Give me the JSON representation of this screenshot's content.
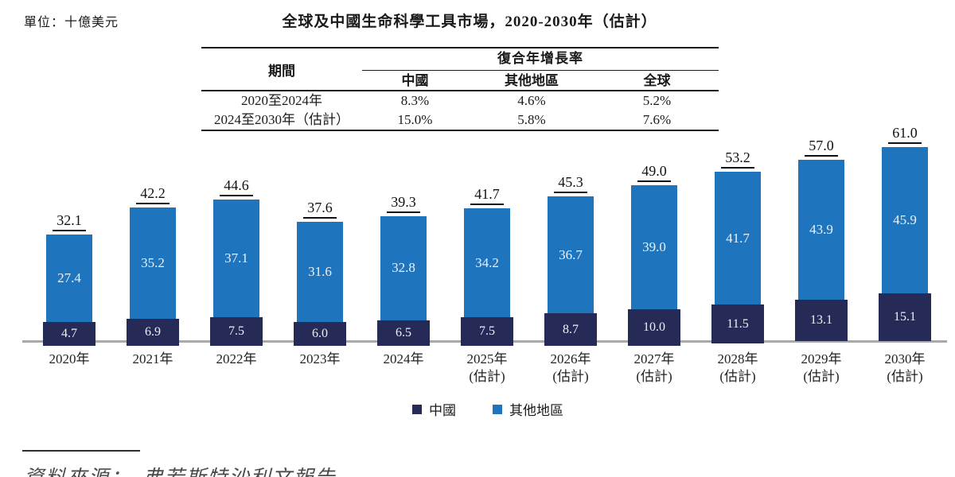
{
  "unit_label": "單位：十億美元",
  "title": "全球及中國生命科學工具市場，2020-2030年（估計）",
  "cagr_table": {
    "period_header": "期間",
    "group_header": "復合年增長率",
    "col_headers": [
      "中國",
      "其他地區",
      "全球"
    ],
    "rows": [
      {
        "period": "2020至2024年",
        "values": [
          "8.3%",
          "4.6%",
          "5.2%"
        ]
      },
      {
        "period": "2024至2030年（估計）",
        "values": [
          "15.0%",
          "5.8%",
          "7.6%"
        ]
      }
    ]
  },
  "chart_data": {
    "type": "bar",
    "stacked": true,
    "title": "全球及中國生命科學工具市場，2020-2030年（估計）",
    "unit": "十億美元",
    "grid": false,
    "legend_position": "bottom",
    "ylim": [
      0,
      65
    ],
    "categories": [
      {
        "label": "2020年",
        "sublabel": ""
      },
      {
        "label": "2021年",
        "sublabel": ""
      },
      {
        "label": "2022年",
        "sublabel": ""
      },
      {
        "label": "2023年",
        "sublabel": ""
      },
      {
        "label": "2024年",
        "sublabel": ""
      },
      {
        "label": "2025年",
        "sublabel": "(估計)"
      },
      {
        "label": "2026年",
        "sublabel": "(估計)"
      },
      {
        "label": "2027年",
        "sublabel": "(估計)"
      },
      {
        "label": "2028年",
        "sublabel": "(估計)"
      },
      {
        "label": "2029年",
        "sublabel": "(估計)"
      },
      {
        "label": "2030年",
        "sublabel": "(估計)"
      }
    ],
    "series": [
      {
        "name": "中國",
        "color": "#252A56",
        "values": [
          4.7,
          6.9,
          7.5,
          6.0,
          6.5,
          7.5,
          8.7,
          10.0,
          11.5,
          13.1,
          15.1
        ]
      },
      {
        "name": "其他地區",
        "color": "#1E75BD",
        "values": [
          27.4,
          35.2,
          37.1,
          31.6,
          32.8,
          34.2,
          36.7,
          39.0,
          41.7,
          43.9,
          45.9
        ]
      }
    ],
    "totals": [
      32.1,
      42.2,
      44.6,
      37.6,
      39.3,
      41.7,
      45.3,
      49.0,
      53.2,
      57.0,
      61.0
    ]
  },
  "legend": [
    {
      "label": "中國",
      "color": "#252A56"
    },
    {
      "label": "其他地區",
      "color": "#1E75BD"
    }
  ],
  "source": "資料來源：　弗若斯特沙利文報告",
  "colors": {
    "china_bar": "#252A56",
    "other_bar": "#1E75BD",
    "axis_line": "#A9A9A9",
    "bar_label_text": "#EEF0F6",
    "table_line": "#1A1A1A"
  }
}
